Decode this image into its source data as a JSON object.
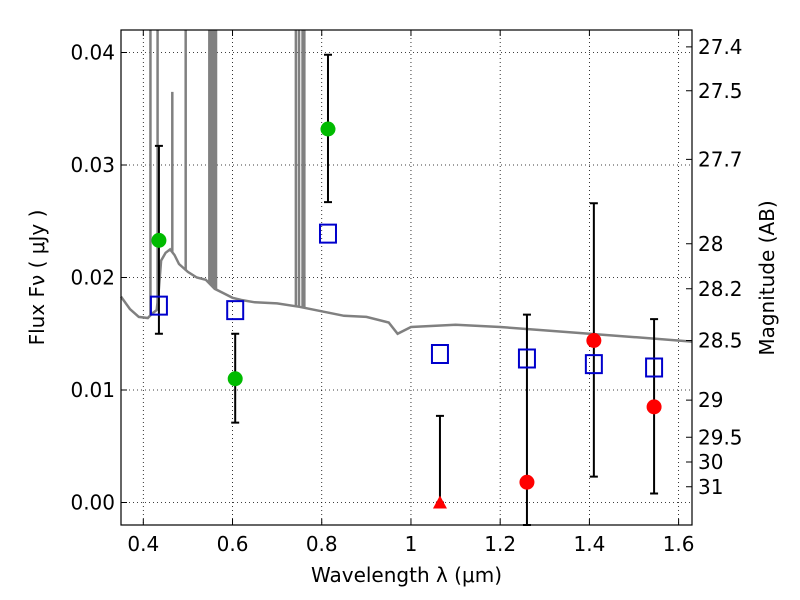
{
  "chart_data": {
    "type": "scatter",
    "xlabel": "Wavelength  λ (μm)",
    "ylabel": "Flux  Fν  ( μJy )",
    "ylabel_right": "Magnitude (AB)",
    "xlim": [
      0.35,
      1.63
    ],
    "ylim": [
      -0.002,
      0.042
    ],
    "grid": true,
    "x_ticks": [
      {
        "value": 0.4,
        "label": "0.4"
      },
      {
        "value": 0.6,
        "label": "0.6"
      },
      {
        "value": 0.8,
        "label": "0.8"
      },
      {
        "value": 1.0,
        "label": "1"
      },
      {
        "value": 1.2,
        "label": "1.2"
      },
      {
        "value": 1.4,
        "label": "1.4"
      },
      {
        "value": 1.6,
        "label": "1.6"
      }
    ],
    "y_ticks": [
      {
        "value": 0.0,
        "label": "0.00"
      },
      {
        "value": 0.01,
        "label": "0.01"
      },
      {
        "value": 0.02,
        "label": "0.02"
      },
      {
        "value": 0.03,
        "label": "0.03"
      },
      {
        "value": 0.04,
        "label": "0.04"
      }
    ],
    "mag_ticks": [
      {
        "value": 0.0405,
        "label": "27.4"
      },
      {
        "value": 0.0366,
        "label": "27.5"
      },
      {
        "value": 0.0305,
        "label": "27.7"
      },
      {
        "value": 0.023,
        "label": "28"
      },
      {
        "value": 0.019,
        "label": "28.2"
      },
      {
        "value": 0.0144,
        "label": "28.5"
      },
      {
        "value": 0.0091,
        "label": "29"
      },
      {
        "value": 0.0058,
        "label": "29.5"
      },
      {
        "value": 0.0036,
        "label": "30"
      },
      {
        "value": 0.0014,
        "label": "31"
      }
    ],
    "series": [
      {
        "marker": "circle",
        "color": "#00bb00",
        "points": [
          {
            "x": 0.435,
            "y": 0.0233,
            "err_low": 0.015,
            "err_high": 0.0317
          },
          {
            "x": 0.606,
            "y": 0.011,
            "err_low": 0.0071,
            "err_high": 0.015
          },
          {
            "x": 0.814,
            "y": 0.0332,
            "err_low": 0.0267,
            "err_high": 0.0398
          }
        ]
      },
      {
        "marker": "circle",
        "color": "#ff0000",
        "points": [
          {
            "x": 1.26,
            "y": 0.0018,
            "err_low": -0.002,
            "err_high": 0.0167
          },
          {
            "x": 1.41,
            "y": 0.0144,
            "err_low": 0.0023,
            "err_high": 0.0266
          },
          {
            "x": 1.545,
            "y": 0.0085,
            "err_low": 0.0008,
            "err_high": 0.0163
          }
        ]
      },
      {
        "marker": "triangle",
        "color": "#ff0000",
        "points": [
          {
            "x": 1.065,
            "y": 0.0,
            "err_low": 0.0,
            "err_high": 0.0077
          }
        ]
      },
      {
        "marker": "open-square",
        "color": "#0000cc",
        "points": [
          {
            "x": 0.435,
            "y": 0.0175
          },
          {
            "x": 0.606,
            "y": 0.0171
          },
          {
            "x": 0.814,
            "y": 0.0239
          },
          {
            "x": 1.065,
            "y": 0.0132
          },
          {
            "x": 1.26,
            "y": 0.0128
          },
          {
            "x": 1.41,
            "y": 0.0123
          },
          {
            "x": 1.545,
            "y": 0.012
          }
        ]
      }
    ],
    "spectrum": {
      "color": "#808080",
      "points": [
        [
          0.35,
          0.0183
        ],
        [
          0.37,
          0.0172
        ],
        [
          0.39,
          0.0165
        ],
        [
          0.41,
          0.0164
        ],
        [
          0.42,
          0.0168
        ],
        [
          0.43,
          0.0171
        ],
        [
          0.435,
          0.019
        ],
        [
          0.44,
          0.0215
        ],
        [
          0.45,
          0.0222
        ],
        [
          0.46,
          0.0225
        ],
        [
          0.47,
          0.022
        ],
        [
          0.48,
          0.0212
        ],
        [
          0.5,
          0.0205
        ],
        [
          0.52,
          0.02
        ],
        [
          0.54,
          0.0198
        ],
        [
          0.56,
          0.019
        ],
        [
          0.58,
          0.0186
        ],
        [
          0.6,
          0.0182
        ],
        [
          0.62,
          0.018
        ],
        [
          0.65,
          0.0178
        ],
        [
          0.7,
          0.0177
        ],
        [
          0.75,
          0.0174
        ],
        [
          0.8,
          0.017
        ],
        [
          0.85,
          0.0166
        ],
        [
          0.9,
          0.0165
        ],
        [
          0.95,
          0.016
        ],
        [
          0.97,
          0.015
        ],
        [
          1.0,
          0.0156
        ],
        [
          1.1,
          0.0158
        ],
        [
          1.2,
          0.0156
        ],
        [
          1.3,
          0.0153
        ],
        [
          1.4,
          0.015
        ],
        [
          1.5,
          0.0147
        ],
        [
          1.63,
          0.0143
        ]
      ],
      "spikes": [
        {
          "x": 0.416,
          "top": 0.042
        },
        {
          "x": 0.432,
          "top": 0.042
        },
        {
          "x": 0.465,
          "top": 0.0365
        },
        {
          "x": 0.495,
          "top": 0.042
        },
        {
          "x": 0.548,
          "top": 0.042
        },
        {
          "x": 0.553,
          "top": 0.042
        },
        {
          "x": 0.556,
          "top": 0.042
        },
        {
          "x": 0.56,
          "top": 0.042
        },
        {
          "x": 0.563,
          "top": 0.042
        },
        {
          "x": 0.742,
          "top": 0.042
        },
        {
          "x": 0.749,
          "top": 0.042
        },
        {
          "x": 0.757,
          "top": 0.042
        },
        {
          "x": 0.761,
          "top": 0.042
        }
      ]
    }
  }
}
